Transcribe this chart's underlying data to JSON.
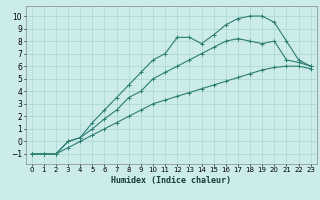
{
  "xlabel": "Humidex (Indice chaleur)",
  "background_color": "#ccecea",
  "grid_color": "#add8d6",
  "line_color": "#2d7d72",
  "xlim": [
    -0.5,
    23.5
  ],
  "ylim": [
    -1.8,
    10.8
  ],
  "xticks": [
    0,
    1,
    2,
    3,
    4,
    5,
    6,
    7,
    8,
    9,
    10,
    11,
    12,
    13,
    14,
    15,
    16,
    17,
    18,
    19,
    20,
    21,
    22,
    23
  ],
  "yticks": [
    -1,
    0,
    1,
    2,
    3,
    4,
    5,
    6,
    7,
    8,
    9,
    10
  ],
  "curve1_x": [
    0,
    1,
    2,
    3,
    4,
    5,
    6,
    7,
    8,
    9,
    10,
    11,
    12,
    13,
    14,
    15,
    16,
    17,
    18,
    19,
    20,
    21,
    22,
    23
  ],
  "curve1_y": [
    -1,
    -1,
    -1,
    0,
    0.3,
    1.5,
    2.5,
    3.5,
    4.5,
    5.5,
    6.5,
    7,
    8.3,
    8.3,
    7.8,
    8.5,
    9.3,
    9.8,
    10,
    10,
    9.5,
    8,
    6.5,
    6
  ],
  "curve2_x": [
    0,
    1,
    2,
    3,
    4,
    5,
    6,
    7,
    8,
    9,
    10,
    11,
    12,
    13,
    14,
    15,
    16,
    17,
    18,
    19,
    20,
    21,
    22,
    23
  ],
  "curve2_y": [
    -1,
    -1,
    -1,
    0,
    0.3,
    1,
    1.8,
    2.5,
    3.5,
    4,
    5,
    5.5,
    6,
    6.5,
    7,
    7.5,
    8,
    8.2,
    8,
    7.8,
    8,
    6.5,
    6.3,
    6
  ],
  "curve3_x": [
    0,
    1,
    2,
    3,
    4,
    5,
    6,
    7,
    8,
    9,
    10,
    11,
    12,
    13,
    14,
    15,
    16,
    17,
    18,
    19,
    20,
    21,
    22,
    23
  ],
  "curve3_y": [
    -1,
    -1,
    -1,
    -0.5,
    0,
    0.5,
    1,
    1.5,
    2,
    2.5,
    3,
    3.3,
    3.6,
    3.9,
    4.2,
    4.5,
    4.8,
    5.1,
    5.4,
    5.7,
    5.9,
    6,
    6.0,
    5.8
  ]
}
